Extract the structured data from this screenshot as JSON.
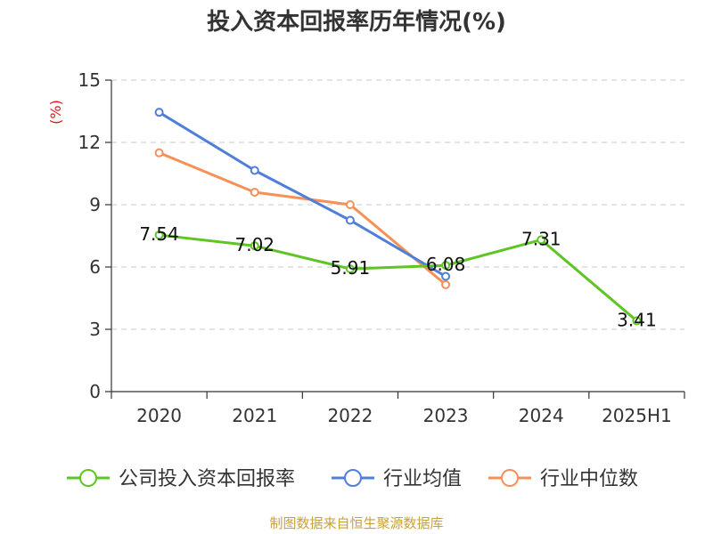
{
  "chart_data": {
    "type": "line",
    "title": "投入资本回报率历年情况(%)",
    "ylabel": "(%)",
    "ylim": [
      0,
      15
    ],
    "yticks": [
      0,
      3,
      6,
      9,
      12,
      15
    ],
    "grid": true,
    "legend_position": "bottom",
    "categories": [
      "2020",
      "2021",
      "2022",
      "2023",
      "2024",
      "2025H1"
    ],
    "series": [
      {
        "name": "公司投入资本回报率",
        "color": "#5fc524",
        "values": [
          7.54,
          7.02,
          5.91,
          6.08,
          7.31,
          3.41
        ],
        "labels": [
          "7.54",
          "7.02",
          "5.91",
          "6.08",
          "7.31",
          "3.41"
        ]
      },
      {
        "name": "行业均值",
        "color": "#4f7fd9",
        "values": [
          13.45,
          10.65,
          8.25,
          5.55,
          null,
          null
        ]
      },
      {
        "name": "行业中位数",
        "color": "#f59058",
        "values": [
          11.5,
          9.6,
          9.0,
          5.15,
          null,
          null
        ]
      }
    ],
    "ylabel_color": "#e0161e"
  },
  "source": {
    "text": "制图数据来自恒生聚源数据库",
    "color": "#c9a13a"
  }
}
